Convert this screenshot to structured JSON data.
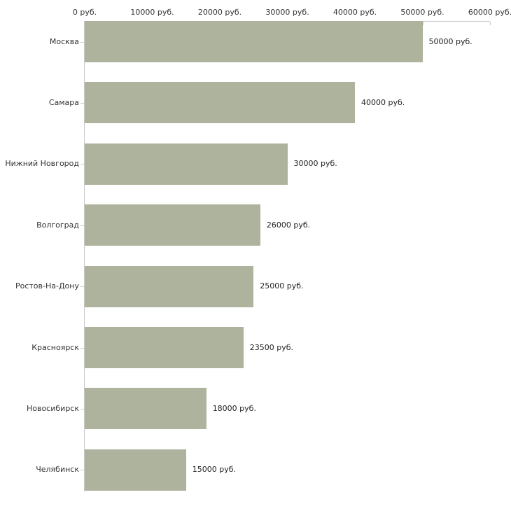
{
  "chart_data": {
    "type": "bar",
    "orientation": "horizontal",
    "title": "",
    "xlabel": "",
    "ylabel": "",
    "grid": false,
    "legend": "none",
    "categories": [
      "Москва",
      "Самара",
      "Нижний Новгород",
      "Волгоград",
      "Ростов-На-Дону",
      "Красноярск",
      "Новосибирск",
      "Челябинск"
    ],
    "values": [
      50000,
      40000,
      30000,
      26000,
      25000,
      23500,
      18000,
      15000
    ],
    "value_labels": [
      "50000 руб.",
      "40000 руб.",
      "30000 руб.",
      "26000 руб.",
      "25000 руб.",
      "23500 руб.",
      "18000 руб.",
      "15000 руб."
    ],
    "x_ticks": [
      0,
      10000,
      20000,
      30000,
      40000,
      50000,
      60000
    ],
    "x_tick_labels": [
      "0 руб.",
      "10000 руб.",
      "20000 руб.",
      "30000 руб.",
      "40000 руб.",
      "50000 руб.",
      "60000 руб."
    ],
    "xlim": [
      0,
      60000
    ],
    "colors": {
      "bar_fill": "#adb39c",
      "axis": "#c9c9c9",
      "tick": "#c9c9c9",
      "text": "#333333"
    }
  }
}
